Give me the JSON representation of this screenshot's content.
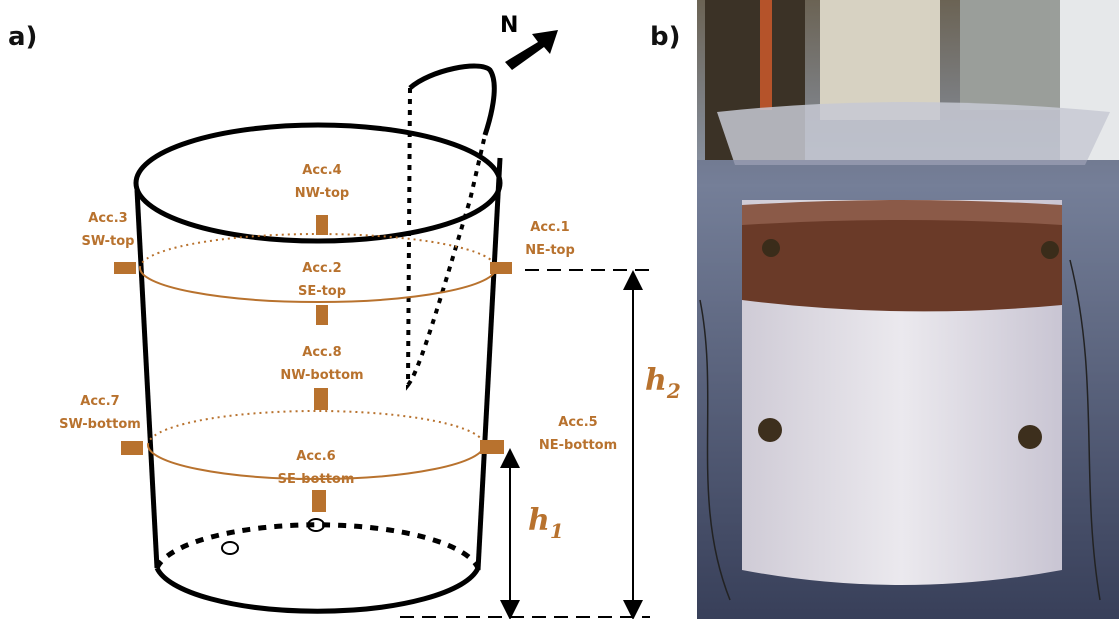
{
  "panels": [
    {
      "label": "a)"
    },
    {
      "label": "b)"
    }
  ],
  "north": "N",
  "sensors": [
    {
      "id": "Acc.1",
      "position": "NE-top"
    },
    {
      "id": "Acc.2",
      "position": "SE-top"
    },
    {
      "id": "Acc.3",
      "position": "SW-top"
    },
    {
      "id": "Acc.4",
      "position": "NW-top"
    },
    {
      "id": "Acc.5",
      "position": "NE-bottom"
    },
    {
      "id": "Acc.6",
      "position": "SE-bottom"
    },
    {
      "id": "Acc.7",
      "position": "SW-bottom"
    },
    {
      "id": "Acc.8",
      "position": "NW-bottom"
    }
  ],
  "dimensions": [
    {
      "symbol": "h",
      "subscript": "1"
    },
    {
      "symbol": "h",
      "subscript": "2"
    }
  ]
}
